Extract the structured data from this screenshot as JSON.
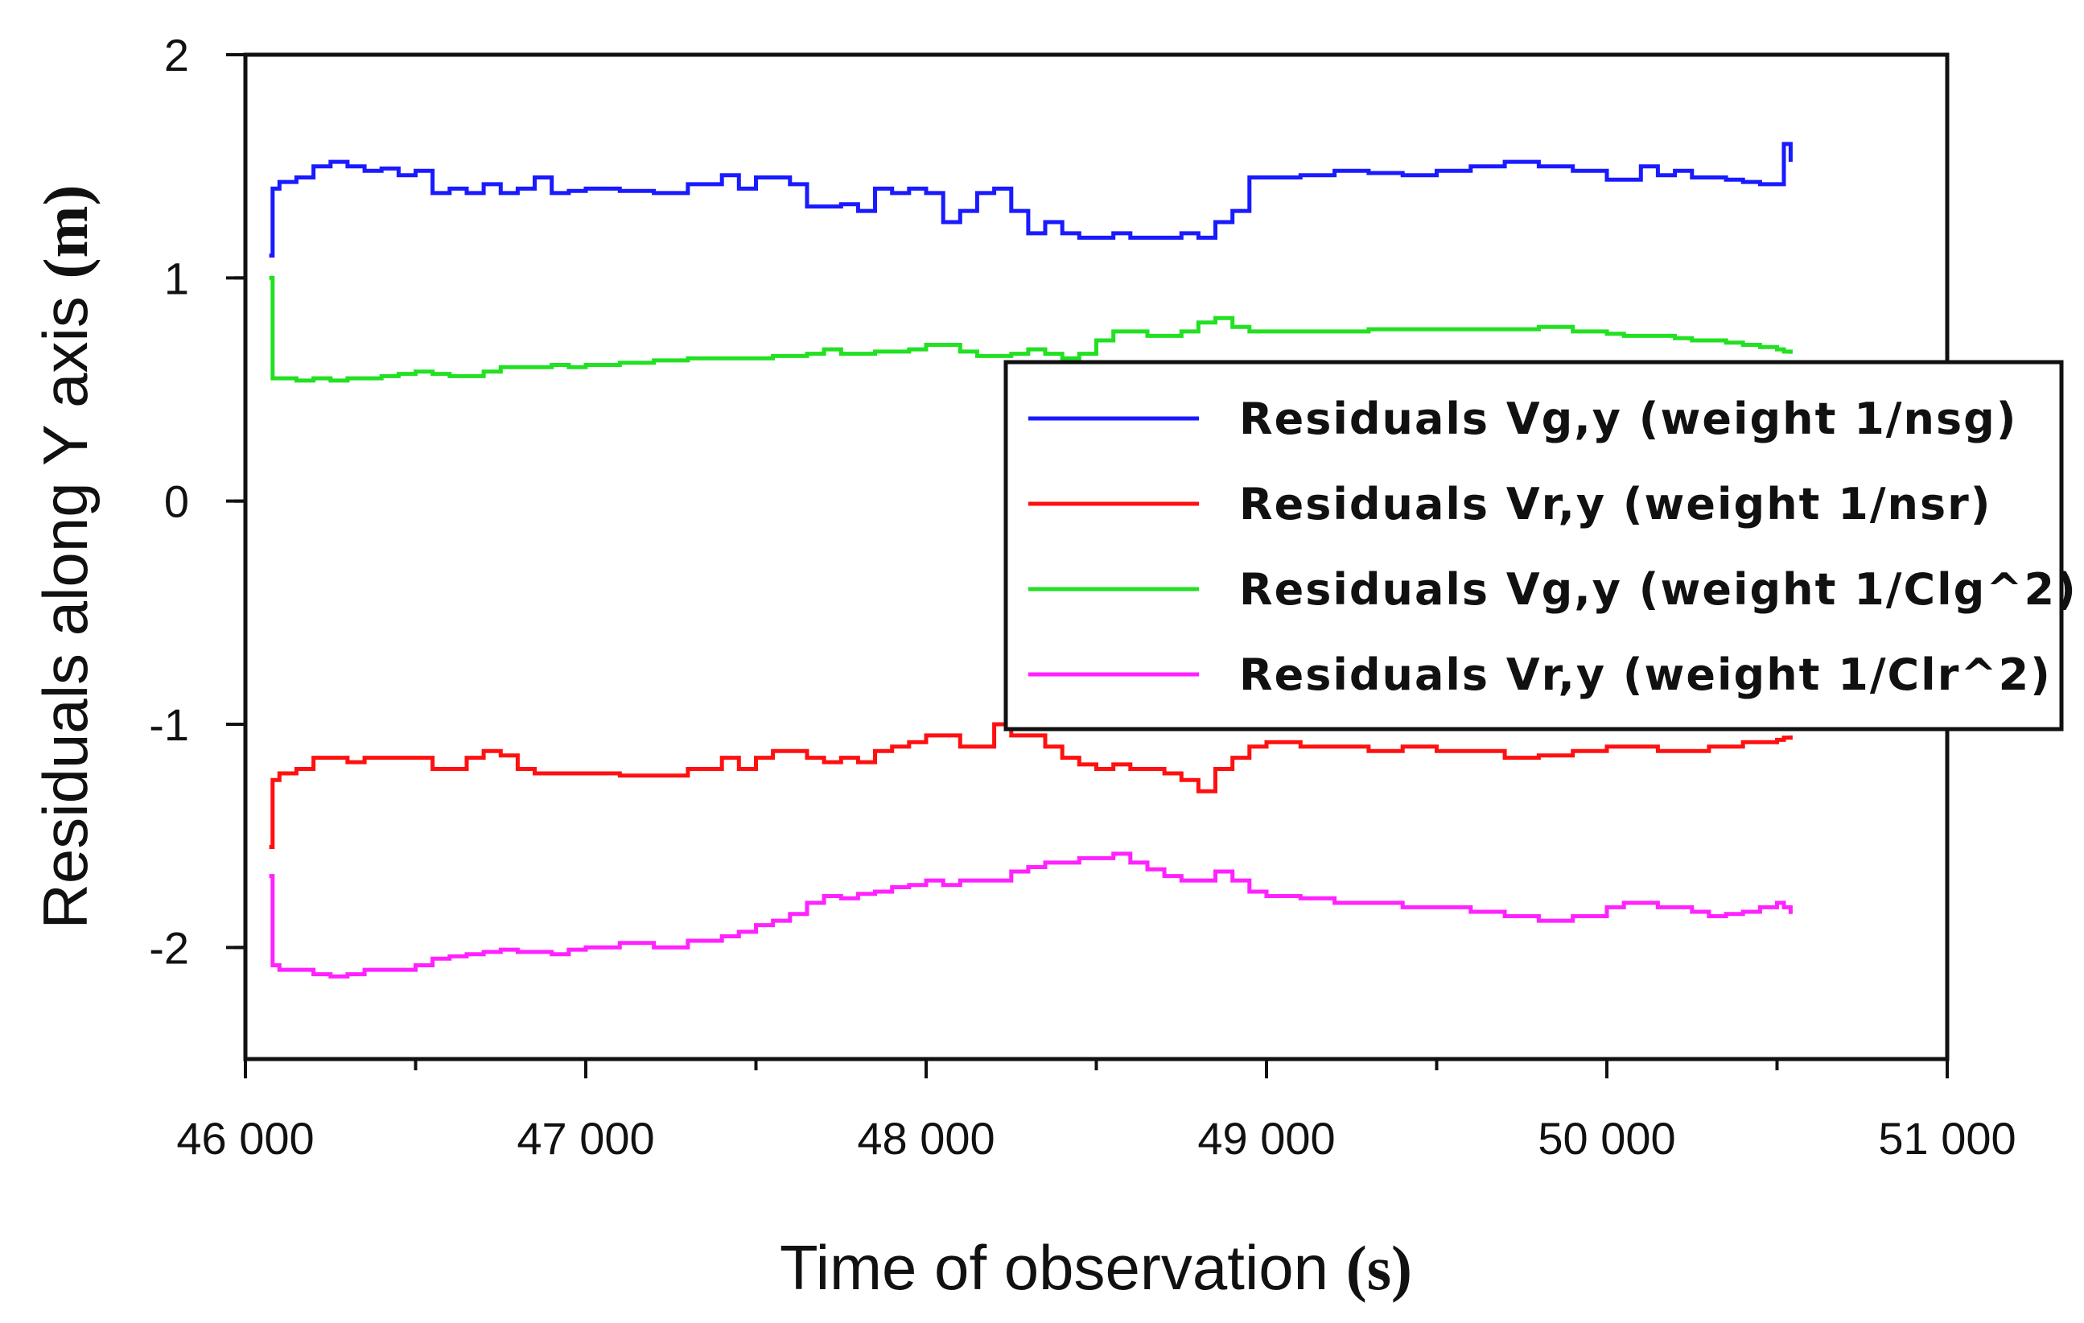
{
  "chart_data": {
    "type": "line",
    "title": "",
    "xlabel": "Time of observation",
    "xlabel_unit": "(s)",
    "ylabel": "Residuals along Y axis",
    "ylabel_unit": "(m)",
    "xlim": [
      46000,
      51000
    ],
    "ylim": [
      -2.5,
      2
    ],
    "xticks": [
      46000,
      47000,
      48000,
      49000,
      50000,
      51000
    ],
    "xtick_labels": [
      "46 000",
      "47 000",
      "48 000",
      "49 000",
      "50 000",
      "51 000"
    ],
    "yticks": [
      -2,
      -1,
      0,
      1,
      2
    ],
    "ytick_labels": [
      "-2",
      "-1",
      "0",
      "1",
      "2"
    ],
    "legend_position": "right",
    "series": [
      {
        "name": "Residuals Vg,y (weight 1/nsg)",
        "color": "#1a1aff",
        "x": [
          46070,
          46080,
          46100,
          46150,
          46200,
          46250,
          46300,
          46350,
          46400,
          46450,
          46500,
          46550,
          46600,
          46650,
          46700,
          46750,
          46800,
          46850,
          46900,
          46950,
          47000,
          47100,
          47200,
          47300,
          47400,
          47450,
          47500,
          47550,
          47600,
          47650,
          47700,
          47750,
          47800,
          47850,
          47900,
          47950,
          48000,
          48050,
          48100,
          48150,
          48200,
          48250,
          48300,
          48350,
          48400,
          48450,
          48500,
          48550,
          48600,
          48650,
          48700,
          48750,
          48800,
          48850,
          48900,
          48950,
          49000,
          49100,
          49200,
          49300,
          49400,
          49500,
          49600,
          49700,
          49800,
          49900,
          50000,
          50050,
          50100,
          50150,
          50200,
          50250,
          50300,
          50350,
          50400,
          50450,
          50500,
          50520,
          50540
        ],
        "values": [
          1.1,
          1.4,
          1.43,
          1.45,
          1.5,
          1.52,
          1.5,
          1.48,
          1.49,
          1.46,
          1.48,
          1.38,
          1.4,
          1.38,
          1.42,
          1.38,
          1.4,
          1.45,
          1.38,
          1.39,
          1.4,
          1.39,
          1.38,
          1.42,
          1.46,
          1.4,
          1.45,
          1.45,
          1.42,
          1.32,
          1.32,
          1.33,
          1.3,
          1.4,
          1.38,
          1.4,
          1.38,
          1.25,
          1.3,
          1.38,
          1.4,
          1.3,
          1.2,
          1.25,
          1.2,
          1.18,
          1.18,
          1.2,
          1.18,
          1.18,
          1.18,
          1.2,
          1.18,
          1.25,
          1.3,
          1.45,
          1.45,
          1.46,
          1.48,
          1.47,
          1.46,
          1.48,
          1.5,
          1.52,
          1.5,
          1.48,
          1.44,
          1.44,
          1.5,
          1.46,
          1.48,
          1.45,
          1.45,
          1.44,
          1.43,
          1.42,
          1.42,
          1.6,
          1.52
        ]
      },
      {
        "name": "Residuals Vr,y (weight 1/nsr)",
        "color": "#ff1010",
        "x": [
          46070,
          46080,
          46100,
          46150,
          46200,
          46250,
          46300,
          46350,
          46400,
          46450,
          46500,
          46550,
          46600,
          46650,
          46700,
          46750,
          46800,
          46850,
          46900,
          46950,
          47000,
          47100,
          47200,
          47300,
          47400,
          47450,
          47500,
          47550,
          47600,
          47650,
          47700,
          47750,
          47800,
          47850,
          47900,
          47950,
          48000,
          48050,
          48100,
          48150,
          48200,
          48250,
          48300,
          48350,
          48400,
          48450,
          48500,
          48550,
          48600,
          48650,
          48700,
          48750,
          48800,
          48850,
          48900,
          48950,
          49000,
          49100,
          49200,
          49300,
          49400,
          49500,
          49600,
          49700,
          49800,
          49900,
          50000,
          50050,
          50100,
          50150,
          50200,
          50250,
          50300,
          50350,
          50400,
          50450,
          50500,
          50520,
          50540
        ],
        "values": [
          -1.55,
          -1.25,
          -1.22,
          -1.2,
          -1.15,
          -1.15,
          -1.17,
          -1.15,
          -1.15,
          -1.15,
          -1.15,
          -1.2,
          -1.2,
          -1.15,
          -1.12,
          -1.14,
          -1.2,
          -1.22,
          -1.22,
          -1.22,
          -1.22,
          -1.23,
          -1.23,
          -1.2,
          -1.15,
          -1.2,
          -1.15,
          -1.12,
          -1.12,
          -1.15,
          -1.17,
          -1.15,
          -1.17,
          -1.12,
          -1.1,
          -1.08,
          -1.05,
          -1.05,
          -1.1,
          -1.1,
          -1.0,
          -1.05,
          -1.05,
          -1.1,
          -1.15,
          -1.18,
          -1.2,
          -1.18,
          -1.2,
          -1.2,
          -1.22,
          -1.25,
          -1.3,
          -1.2,
          -1.15,
          -1.1,
          -1.08,
          -1.1,
          -1.1,
          -1.12,
          -1.1,
          -1.12,
          -1.12,
          -1.15,
          -1.14,
          -1.12,
          -1.1,
          -1.1,
          -1.1,
          -1.12,
          -1.12,
          -1.12,
          -1.1,
          -1.1,
          -1.08,
          -1.08,
          -1.07,
          -1.06,
          -1.05
        ]
      },
      {
        "name": "Residuals Vg,y (weight 1/Clg^2)",
        "color": "#22e022",
        "x": [
          46070,
          46080,
          46100,
          46150,
          46200,
          46250,
          46300,
          46350,
          46400,
          46450,
          46500,
          46550,
          46600,
          46650,
          46700,
          46750,
          46800,
          46850,
          46900,
          46950,
          47000,
          47100,
          47200,
          47300,
          47400,
          47450,
          47500,
          47550,
          47600,
          47650,
          47700,
          47750,
          47800,
          47850,
          47900,
          47950,
          48000,
          48050,
          48100,
          48150,
          48200,
          48250,
          48300,
          48350,
          48400,
          48450,
          48500,
          48550,
          48600,
          48650,
          48700,
          48750,
          48800,
          48850,
          48900,
          48950,
          49000,
          49100,
          49200,
          49300,
          49400,
          49500,
          49600,
          49700,
          49800,
          49900,
          50000,
          50050,
          50100,
          50150,
          50200,
          50250,
          50300,
          50350,
          50400,
          50450,
          50500,
          50520,
          50540
        ],
        "values": [
          1.0,
          0.55,
          0.55,
          0.54,
          0.55,
          0.54,
          0.55,
          0.55,
          0.56,
          0.57,
          0.58,
          0.57,
          0.56,
          0.56,
          0.58,
          0.6,
          0.6,
          0.6,
          0.61,
          0.6,
          0.61,
          0.62,
          0.63,
          0.64,
          0.64,
          0.64,
          0.64,
          0.65,
          0.65,
          0.66,
          0.68,
          0.66,
          0.66,
          0.67,
          0.67,
          0.68,
          0.7,
          0.7,
          0.67,
          0.65,
          0.65,
          0.66,
          0.68,
          0.66,
          0.64,
          0.66,
          0.72,
          0.76,
          0.76,
          0.74,
          0.74,
          0.76,
          0.8,
          0.82,
          0.78,
          0.76,
          0.76,
          0.76,
          0.76,
          0.77,
          0.77,
          0.77,
          0.77,
          0.77,
          0.78,
          0.76,
          0.75,
          0.74,
          0.74,
          0.74,
          0.73,
          0.72,
          0.72,
          0.71,
          0.7,
          0.69,
          0.68,
          0.67,
          0.66
        ]
      },
      {
        "name": "Residuals Vr,y (weight 1/Clr^2)",
        "color": "#ff22ff",
        "x": [
          46070,
          46080,
          46100,
          46150,
          46200,
          46250,
          46300,
          46350,
          46400,
          46450,
          46500,
          46550,
          46600,
          46650,
          46700,
          46750,
          46800,
          46850,
          46900,
          46950,
          47000,
          47100,
          47200,
          47300,
          47400,
          47450,
          47500,
          47550,
          47600,
          47650,
          47700,
          47750,
          47800,
          47850,
          47900,
          47950,
          48000,
          48050,
          48100,
          48150,
          48200,
          48250,
          48300,
          48350,
          48400,
          48450,
          48500,
          48550,
          48600,
          48650,
          48700,
          48750,
          48800,
          48850,
          48900,
          48950,
          49000,
          49100,
          49200,
          49300,
          49400,
          49500,
          49600,
          49700,
          49800,
          49900,
          50000,
          50050,
          50100,
          50150,
          50200,
          50250,
          50300,
          50350,
          50400,
          50450,
          50500,
          50520,
          50540
        ],
        "values": [
          -1.68,
          -2.08,
          -2.1,
          -2.1,
          -2.12,
          -2.13,
          -2.12,
          -2.1,
          -2.1,
          -2.1,
          -2.08,
          -2.05,
          -2.04,
          -2.03,
          -2.02,
          -2.01,
          -2.02,
          -2.02,
          -2.03,
          -2.01,
          -2.0,
          -1.98,
          -2.0,
          -1.97,
          -1.95,
          -1.93,
          -1.9,
          -1.88,
          -1.85,
          -1.8,
          -1.77,
          -1.78,
          -1.76,
          -1.75,
          -1.73,
          -1.72,
          -1.7,
          -1.72,
          -1.7,
          -1.7,
          -1.7,
          -1.66,
          -1.64,
          -1.62,
          -1.62,
          -1.6,
          -1.6,
          -1.58,
          -1.62,
          -1.65,
          -1.68,
          -1.7,
          -1.7,
          -1.66,
          -1.7,
          -1.75,
          -1.77,
          -1.78,
          -1.8,
          -1.8,
          -1.82,
          -1.82,
          -1.84,
          -1.86,
          -1.88,
          -1.86,
          -1.82,
          -1.8,
          -1.8,
          -1.82,
          -1.82,
          -1.84,
          -1.86,
          -1.85,
          -1.84,
          -1.82,
          -1.8,
          -1.82,
          -1.85
        ]
      }
    ]
  }
}
